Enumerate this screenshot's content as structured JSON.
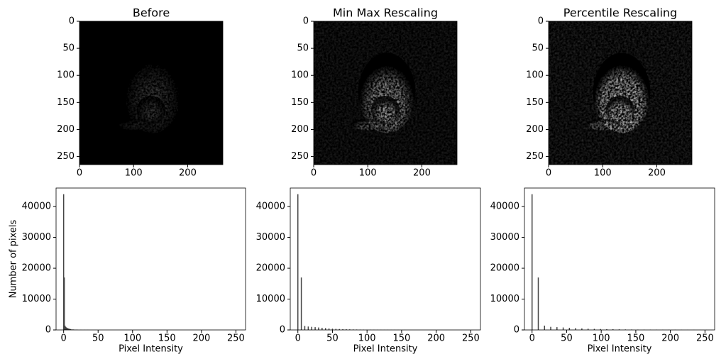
{
  "chart_data": [
    {
      "type": "image",
      "title": "Before",
      "xlim": [
        0,
        265
      ],
      "ylim": [
        265,
        0
      ],
      "xticks": [
        0,
        100,
        200
      ],
      "yticks": [
        0,
        50,
        100,
        150,
        200,
        250
      ]
    },
    {
      "type": "image",
      "title": "Min Max Rescaling",
      "xlim": [
        0,
        265
      ],
      "ylim": [
        265,
        0
      ],
      "xticks": [
        0,
        100,
        200
      ],
      "yticks": [
        0,
        50,
        100,
        150,
        200,
        250
      ]
    },
    {
      "type": "image",
      "title": "Percentile Rescaling",
      "xlim": [
        0,
        265
      ],
      "ylim": [
        265,
        0
      ],
      "xticks": [
        0,
        100,
        200
      ],
      "yticks": [
        0,
        50,
        100,
        150,
        200,
        250
      ]
    },
    {
      "type": "histogram",
      "xlabel": "Pixel Intensity",
      "ylabel": "Number of pixels",
      "color": "#444444",
      "x": [
        0,
        1,
        2,
        3,
        4,
        5,
        6,
        7,
        8,
        9,
        10,
        12,
        14,
        16,
        18,
        20,
        25,
        30,
        35
      ],
      "values": [
        44000,
        17000,
        1400,
        1000,
        800,
        650,
        550,
        450,
        380,
        320,
        270,
        200,
        150,
        120,
        100,
        80,
        50,
        30,
        15
      ],
      "xlim": [
        -11,
        264
      ],
      "ylim": [
        0,
        46000
      ],
      "xticks": [
        0,
        50,
        100,
        150,
        200,
        250
      ],
      "yticks": [
        0,
        10000,
        20000,
        30000,
        40000
      ]
    },
    {
      "type": "histogram",
      "xlabel": "Pixel Intensity",
      "color": "#444444",
      "x": [
        0,
        5,
        10,
        15,
        20,
        25,
        30,
        35,
        40,
        45,
        50,
        55,
        60,
        65,
        70,
        75,
        80,
        85,
        90,
        95,
        100,
        105,
        110,
        115,
        120,
        125,
        130,
        135,
        140,
        145,
        150,
        155
      ],
      "values": [
        44000,
        17000,
        1300,
        1100,
        1000,
        900,
        800,
        700,
        600,
        500,
        420,
        360,
        300,
        260,
        220,
        190,
        160,
        140,
        120,
        100,
        90,
        80,
        70,
        60,
        50,
        45,
        40,
        35,
        30,
        25,
        20,
        20
      ],
      "xlim": [
        -11,
        264
      ],
      "ylim": [
        0,
        46000
      ],
      "xticks": [
        0,
        50,
        100,
        150,
        200,
        250
      ],
      "yticks": [
        0,
        10000,
        20000,
        30000,
        40000
      ]
    },
    {
      "type": "histogram",
      "xlabel": "Pixel Intensity",
      "color": "#444444",
      "x": [
        0,
        9,
        18,
        27,
        36,
        45,
        54,
        63,
        72,
        81,
        90,
        99,
        108,
        117,
        126,
        135,
        144,
        153,
        162,
        171,
        180,
        189,
        198,
        207,
        216,
        225,
        234,
        243,
        252
      ],
      "values": [
        44000,
        17000,
        1400,
        1000,
        900,
        800,
        700,
        600,
        500,
        420,
        360,
        300,
        260,
        220,
        190,
        160,
        140,
        120,
        100,
        90,
        80,
        70,
        60,
        55,
        50,
        45,
        40,
        35,
        30
      ],
      "xlim": [
        -11,
        264
      ],
      "ylim": [
        0,
        46000
      ],
      "xticks": [
        0,
        50,
        100,
        150,
        200,
        250
      ],
      "yticks": [
        0,
        10000,
        20000,
        30000,
        40000
      ]
    }
  ]
}
